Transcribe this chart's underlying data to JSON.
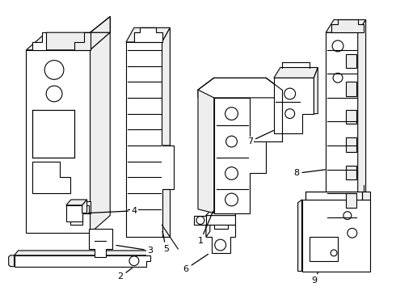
{
  "background_color": "#ffffff",
  "line_color": "#000000",
  "line_width": 0.8,
  "fig_width": 4.9,
  "fig_height": 3.6,
  "dpi": 100
}
